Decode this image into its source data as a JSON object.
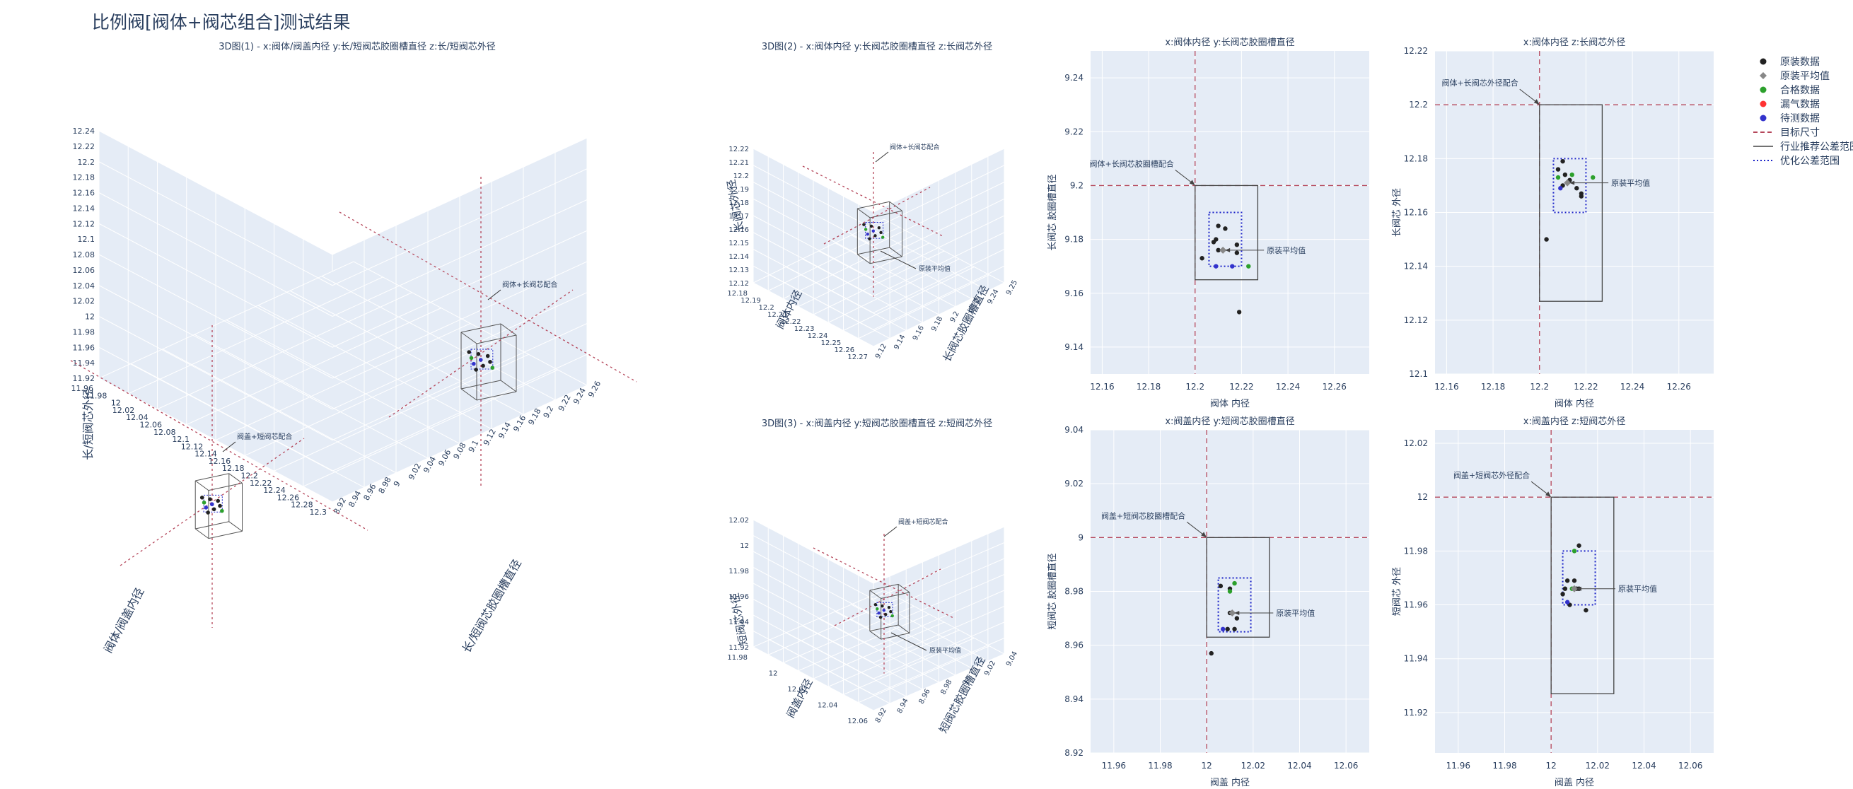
{
  "page_title": "比例阀[阀体+阀芯组合]测试结果",
  "colors": {
    "plot_bg": "#e5ecf6",
    "grid": "#ffffff",
    "text": "#2a3f5f",
    "raw": "#222222",
    "raw_mean": "#888888",
    "pass": "#2ca02c",
    "leak": "#ff3333",
    "pending": "#3333cc",
    "target": "#b5475b",
    "industry": "#444444",
    "optimized": "#1a22c8"
  },
  "legend": [
    {
      "label": "原装数据",
      "symbol": "dot",
      "color": "#222222"
    },
    {
      "label": "原装平均值",
      "symbol": "diamond",
      "color": "#888888"
    },
    {
      "label": "合格数据",
      "symbol": "dot",
      "color": "#2ca02c"
    },
    {
      "label": "漏气数据",
      "symbol": "dot",
      "color": "#ff3333"
    },
    {
      "label": "待测数据",
      "symbol": "dot",
      "color": "#3333cc"
    },
    {
      "label": "目标尺寸",
      "symbol": "dash",
      "color": "#b5475b"
    },
    {
      "label": "行业推荐公差范围",
      "symbol": "solid",
      "color": "#444444"
    },
    {
      "label": "优化公差范围",
      "symbol": "dot-line",
      "color": "#1a22c8"
    }
  ],
  "scenes": [
    {
      "title": "3D图(1) - x:阀体/阀盖内径 y:长/短阀芯胶圈槽直径 z:长/短阀芯外径",
      "xlabel": "阀体/阀盖内径",
      "ylabel": "长/短阀芯胶圈槽直径",
      "zlabel": "长/短阀芯外径",
      "xticks": [
        "11.96",
        "11.98",
        "12",
        "12.02",
        "12.04",
        "12.06",
        "12.08",
        "12.1",
        "12.12",
        "12.14",
        "12.16",
        "12.18",
        "12.2",
        "12.22",
        "12.24",
        "12.26",
        "12.28",
        "12.3"
      ],
      "yticks": [
        "8.92",
        "8.94",
        "8.96",
        "8.98",
        "9",
        "9.02",
        "9.04",
        "9.06",
        "9.08",
        "9.1",
        "9.12",
        "9.14",
        "9.16",
        "9.18",
        "9.2",
        "9.22",
        "9.24",
        "9.26"
      ],
      "zticks": [
        "11.92",
        "11.94",
        "11.96",
        "11.98",
        "12",
        "12.02",
        "12.04",
        "12.06",
        "12.08",
        "12.1",
        "12.12",
        "12.14",
        "12.16",
        "12.18",
        "12.2",
        "12.22",
        "12.24"
      ],
      "annotations": [
        "阀体+长阀芯配合",
        "阀盖+短阀芯配合"
      ]
    },
    {
      "title": "3D图(2) - x:阀体内径 y:长阀芯胶圈槽直径 z:长阀芯外径",
      "xlabel": "阀体内径",
      "ylabel": "长阀芯胶圈槽直径",
      "zlabel": "长阀芯外径",
      "xticks": [
        "12.18",
        "12.19",
        "12.2",
        "12.21",
        "12.22",
        "12.23",
        "12.24",
        "12.25",
        "12.26",
        "12.27"
      ],
      "yticks": [
        "9.12",
        "9.14",
        "9.16",
        "9.18",
        "9.2",
        "9.22",
        "9.24",
        "9.25"
      ],
      "zticks": [
        "12.12",
        "12.13",
        "12.14",
        "12.15",
        "12.16",
        "12.17",
        "12.18",
        "12.19",
        "12.2",
        "12.21",
        "12.22"
      ],
      "annotations": [
        "阀体+长阀芯配合",
        "原装平均值"
      ]
    },
    {
      "title": "3D图(3) - x:阀盖内径 y:短阀芯胶圈槽直径 z:短阀芯外径",
      "xlabel": "阀盖内径",
      "ylabel": "短阀芯胶圈槽直径",
      "zlabel": "短阀芯外径",
      "xticks": [
        "11.98",
        "12",
        "12.02",
        "12.04",
        "12.06"
      ],
      "yticks": [
        "8.92",
        "8.94",
        "8.96",
        "8.98",
        "9",
        "9.02",
        "9.04"
      ],
      "zticks": [
        "11.92",
        "11.94",
        "11.96",
        "11.98",
        "12",
        "12.02"
      ],
      "annotations": [
        "阀盖+短阀芯配合",
        "原装平均值"
      ]
    }
  ],
  "chart_data": [
    {
      "type": "scatter",
      "title": "x:阀体内径 y:长阀芯胶圈槽直径",
      "xlabel": "阀体 内径",
      "ylabel": "长阀芯 胶圈槽直径",
      "xlim": [
        12.155,
        12.275
      ],
      "ylim": [
        9.13,
        9.25
      ],
      "xticks": [
        12.16,
        12.18,
        12.2,
        12.22,
        12.24,
        12.26
      ],
      "yticks": [
        9.14,
        9.16,
        9.18,
        9.2,
        9.22,
        9.24
      ],
      "target": {
        "x": 12.2,
        "y": 9.2
      },
      "industry_box": [
        12.2,
        12.227,
        9.165,
        9.2
      ],
      "opt_box": [
        12.206,
        12.22,
        9.17,
        9.19
      ],
      "series": [
        {
          "name": "原装数据",
          "color": "#222222",
          "points": [
            [
              12.21,
              9.185
            ],
            [
              12.213,
              9.184
            ],
            [
              12.209,
              9.18
            ],
            [
              12.208,
              9.179
            ],
            [
              12.21,
              9.176
            ],
            [
              12.218,
              9.178
            ],
            [
              12.218,
              9.175
            ],
            [
              12.203,
              9.173
            ],
            [
              12.219,
              9.153
            ]
          ]
        },
        {
          "name": "合格数据",
          "color": "#2ca02c",
          "points": [
            [
              12.223,
              9.17
            ]
          ]
        },
        {
          "name": "待测数据",
          "color": "#3333cc",
          "points": [
            [
              12.209,
              9.17
            ],
            [
              12.216,
              9.17
            ]
          ]
        },
        {
          "name": "原装平均值",
          "color": "#888888",
          "points": [
            [
              12.212,
              9.176
            ]
          ]
        }
      ],
      "annotations": [
        {
          "text": "阀体+长阀芯胶圈槽配合",
          "x": 12.2,
          "y": 9.2
        },
        {
          "text": "原装平均值",
          "x": 12.212,
          "y": 9.176
        }
      ]
    },
    {
      "type": "scatter",
      "title": "x:阀体内径 z:长阀芯外径",
      "xlabel": "阀体 内径",
      "ylabel": "长阀芯 外径",
      "xlim": [
        12.155,
        12.275
      ],
      "ylim": [
        12.1,
        12.22
      ],
      "xticks": [
        12.16,
        12.18,
        12.2,
        12.22,
        12.24,
        12.26
      ],
      "yticks": [
        12.1,
        12.12,
        12.14,
        12.16,
        12.18,
        12.2,
        12.22
      ],
      "target": {
        "x": 12.2,
        "y": 12.2
      },
      "industry_box": [
        12.2,
        12.227,
        12.127,
        12.2
      ],
      "opt_box": [
        12.206,
        12.22,
        12.16,
        12.18
      ],
      "series": [
        {
          "name": "原装数据",
          "color": "#222222",
          "points": [
            [
              12.208,
              12.176
            ],
            [
              12.21,
              12.179
            ],
            [
              12.211,
              12.174
            ],
            [
              12.21,
              12.17
            ],
            [
              12.213,
              12.172
            ],
            [
              12.218,
              12.167
            ],
            [
              12.216,
              12.169
            ],
            [
              12.218,
              12.166
            ],
            [
              12.203,
              12.15
            ]
          ]
        },
        {
          "name": "合格数据",
          "color": "#2ca02c",
          "points": [
            [
              12.208,
              12.173
            ],
            [
              12.214,
              12.174
            ],
            [
              12.223,
              12.173
            ]
          ]
        },
        {
          "name": "待测数据",
          "color": "#3333cc",
          "points": [
            [
              12.209,
              12.169
            ]
          ]
        },
        {
          "name": "原装平均值",
          "color": "#888888",
          "points": [
            [
              12.212,
              12.171
            ]
          ]
        }
      ],
      "annotations": [
        {
          "text": "阀体+长阀芯外径配合",
          "x": 12.2,
          "y": 12.2
        },
        {
          "text": "原装平均值",
          "x": 12.212,
          "y": 12.171
        }
      ]
    },
    {
      "type": "scatter",
      "title": "x:阀盖内径 y:短阀芯胶圈槽直径",
      "xlabel": "阀盖 内径",
      "ylabel": "短阀芯 胶圈槽直径",
      "xlim": [
        11.95,
        12.07
      ],
      "ylim": [
        8.92,
        9.04
      ],
      "xticks": [
        11.96,
        11.98,
        12,
        12.02,
        12.04,
        12.06
      ],
      "yticks": [
        8.92,
        8.94,
        8.96,
        8.98,
        9,
        9.02,
        9.04
      ],
      "target": {
        "x": 12.0,
        "y": 9.0
      },
      "industry_box": [
        12.0,
        12.027,
        8.963,
        9.0
      ],
      "opt_box": [
        12.005,
        12.019,
        8.965,
        8.985
      ],
      "series": [
        {
          "name": "原装数据",
          "color": "#222222",
          "points": [
            [
              12.006,
              8.982
            ],
            [
              12.01,
              8.981
            ],
            [
              12.01,
              8.972
            ],
            [
              12.013,
              8.97
            ],
            [
              12.009,
              8.966
            ],
            [
              12.012,
              8.966
            ],
            [
              12.002,
              8.957
            ]
          ]
        },
        {
          "name": "合格数据",
          "color": "#2ca02c",
          "points": [
            [
              12.012,
              8.983
            ],
            [
              12.01,
              8.98
            ]
          ]
        },
        {
          "name": "待测数据",
          "color": "#3333cc",
          "points": [
            [
              12.007,
              8.966
            ]
          ]
        },
        {
          "name": "原装平均值",
          "color": "#888888",
          "points": [
            [
              12.011,
              8.972
            ]
          ]
        }
      ],
      "annotations": [
        {
          "text": "阀盖+短阀芯胶圈槽配合",
          "x": 12.0,
          "y": 9.0
        },
        {
          "text": "原装平均值",
          "x": 12.011,
          "y": 8.972
        }
      ]
    },
    {
      "type": "scatter",
      "title": "x:阀盖内径 z:短阀芯外径",
      "xlabel": "阀盖 内径",
      "ylabel": "短阀芯 外径",
      "xlim": [
        11.95,
        12.07
      ],
      "ylim": [
        11.905,
        12.025
      ],
      "xticks": [
        11.96,
        11.98,
        12,
        12.02,
        12.04,
        12.06
      ],
      "yticks": [
        11.92,
        11.94,
        11.96,
        11.98,
        12,
        12.02
      ],
      "target": {
        "x": 12.0,
        "y": 12.0
      },
      "industry_box": [
        12.0,
        12.027,
        11.927,
        12.0
      ],
      "opt_box": [
        12.005,
        12.019,
        11.96,
        11.98
      ],
      "series": [
        {
          "name": "原装数据",
          "color": "#222222",
          "points": [
            [
              12.012,
              11.982
            ],
            [
              12.007,
              11.969
            ],
            [
              12.01,
              11.969
            ],
            [
              12.011,
              11.966
            ],
            [
              12.012,
              11.966
            ],
            [
              12.006,
              11.966
            ],
            [
              12.005,
              11.964
            ],
            [
              12.008,
              11.96
            ],
            [
              12.015,
              11.958
            ]
          ]
        },
        {
          "name": "合格数据",
          "color": "#2ca02c",
          "points": [
            [
              12.01,
              11.98
            ],
            [
              12.009,
              11.966
            ]
          ]
        },
        {
          "name": "待测数据",
          "color": "#3333cc",
          "points": [
            [
              12.007,
              11.961
            ]
          ]
        },
        {
          "name": "原装平均值",
          "color": "#888888",
          "points": [
            [
              12.01,
              11.966
            ]
          ]
        }
      ],
      "annotations": [
        {
          "text": "阀盖+短阀芯外径配合",
          "x": 12.0,
          "y": 12.0
        },
        {
          "text": "原装平均值",
          "x": 12.01,
          "y": 11.966
        }
      ]
    }
  ]
}
